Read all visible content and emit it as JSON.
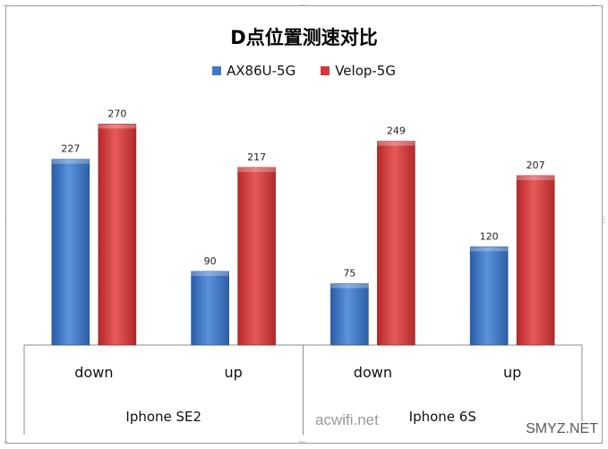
{
  "chart_data": {
    "type": "bar",
    "title": "D点位置测速对比",
    "legend_position": "top",
    "categories": [
      "down",
      "up",
      "down",
      "up"
    ],
    "groups": [
      {
        "label": "Iphone SE2",
        "categories": [
          "down",
          "up"
        ]
      },
      {
        "label": "Iphone 6S",
        "categories": [
          "down",
          "up"
        ]
      }
    ],
    "series": [
      {
        "name": "AX86U-5G",
        "color": "#3f78c8",
        "values": [
          227,
          90,
          75,
          120
        ]
      },
      {
        "name": "Velop-5G",
        "color": "#d33b3b",
        "values": [
          270,
          217,
          249,
          207
        ]
      }
    ],
    "ylim": [
      0,
      300
    ],
    "grid": false
  },
  "watermarks": [
    "acwifi.net",
    "SMYZ.NET"
  ]
}
